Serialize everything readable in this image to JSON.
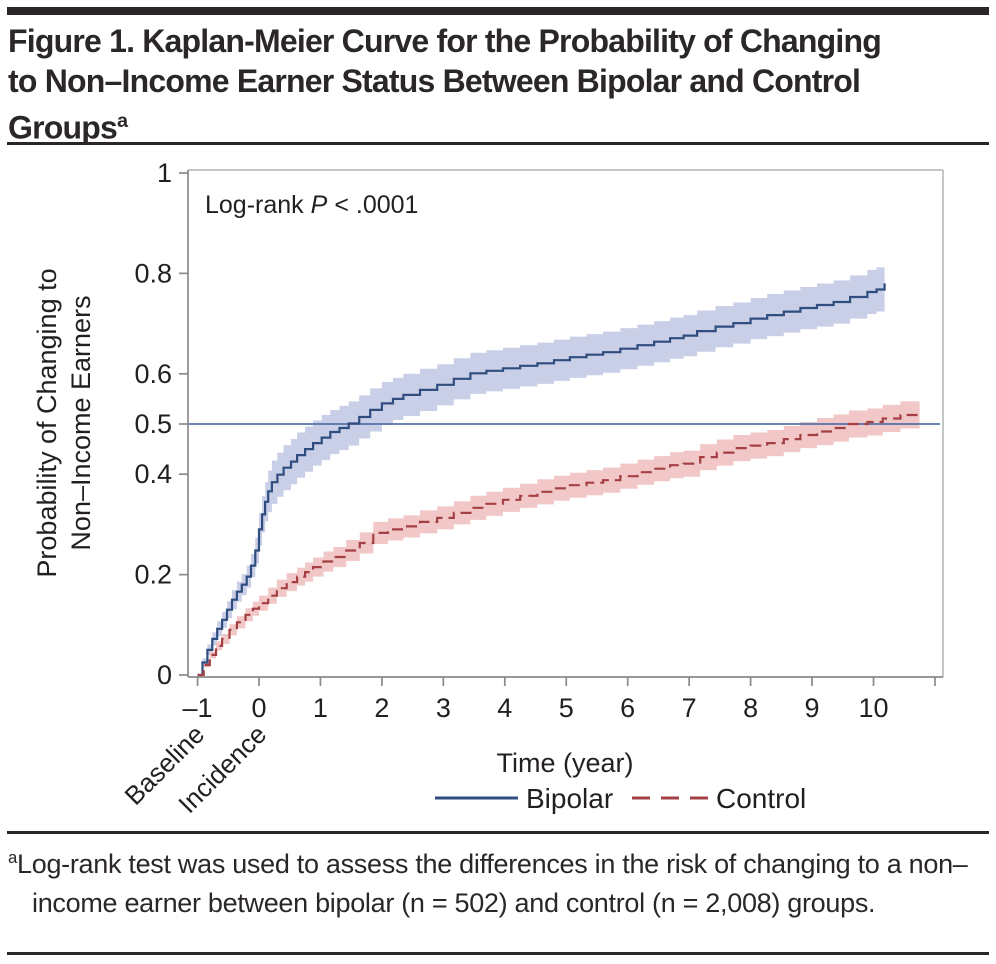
{
  "header": {
    "title_lines": [
      "Figure 1. Kaplan-Meier Curve for the Probability of Changing",
      "to Non–Income Earner Status Between Bipolar and Control",
      "Groups"
    ],
    "title_superscript": "a"
  },
  "footnote": {
    "superscript": "a",
    "text": "Log-rank test was used to assess the differences in the risk of changing to a non–income earner between bipolar (n = 502) and control (n = 2,008) groups."
  },
  "chart_data": {
    "type": "line",
    "subtype": "kaplan-meier-step-curves-with-confidence-bands",
    "annotation_prefix": "Log-rank",
    "annotation_p": "P",
    "annotation_suffix": "< .0001",
    "xlabel": "Time (year)",
    "ylabel_lines": [
      "Probability of Changing to",
      "Non–Income Earners"
    ],
    "xlim": [
      -1.16,
      11.15
    ],
    "ylim": [
      0,
      1
    ],
    "grid": false,
    "legend_position": "bottom",
    "reference_line_y": 0.5,
    "reference_line_color": "#5472a8",
    "x_ticks": [
      {
        "v": -1,
        "label": "–1"
      },
      {
        "v": 0,
        "label": "0"
      },
      {
        "v": 1,
        "label": "1"
      },
      {
        "v": 2,
        "label": "2"
      },
      {
        "v": 3,
        "label": "3"
      },
      {
        "v": 4,
        "label": "4"
      },
      {
        "v": 5,
        "label": "5"
      },
      {
        "v": 6,
        "label": "6"
      },
      {
        "v": 7,
        "label": "7"
      },
      {
        "v": 8,
        "label": "8"
      },
      {
        "v": 9,
        "label": "9"
      },
      {
        "v": 10,
        "label": "10"
      },
      {
        "v": 11,
        "label": ""
      }
    ],
    "y_ticks": [
      {
        "v": 0,
        "label": "0"
      },
      {
        "v": 0.2,
        "label": "0.2"
      },
      {
        "v": 0.4,
        "label": "0.4"
      },
      {
        "v": 0.5,
        "label": "0.5"
      },
      {
        "v": 0.6,
        "label": "0.6"
      },
      {
        "v": 0.8,
        "label": "0.8"
      },
      {
        "v": 1,
        "label": "1"
      }
    ],
    "x_tick_sublabels": [
      {
        "x": -1,
        "label": "Baseline"
      },
      {
        "x": 0,
        "label": "Incidence"
      }
    ],
    "series": [
      {
        "name": "Bipolar",
        "style": "solid",
        "color": "#2f4d7e",
        "band_color": "#c3cae4",
        "points_format": "[time_years, probability, ci_halfwidth]",
        "points": [
          [
            -1.0,
            0.0,
            0.0
          ],
          [
            -0.92,
            0.025,
            0.008
          ],
          [
            -0.84,
            0.05,
            0.011
          ],
          [
            -0.76,
            0.072,
            0.013
          ],
          [
            -0.68,
            0.092,
            0.015
          ],
          [
            -0.6,
            0.11,
            0.016
          ],
          [
            -0.52,
            0.13,
            0.017
          ],
          [
            -0.44,
            0.15,
            0.019
          ],
          [
            -0.36,
            0.166,
            0.02
          ],
          [
            -0.28,
            0.18,
            0.021
          ],
          [
            -0.2,
            0.196,
            0.022
          ],
          [
            -0.13,
            0.218,
            0.023
          ],
          [
            -0.06,
            0.248,
            0.026
          ],
          [
            0.0,
            0.29,
            0.032
          ],
          [
            0.05,
            0.32,
            0.036
          ],
          [
            0.1,
            0.345,
            0.039
          ],
          [
            0.15,
            0.366,
            0.041
          ],
          [
            0.21,
            0.384,
            0.043
          ],
          [
            0.3,
            0.399,
            0.044
          ],
          [
            0.4,
            0.413,
            0.045
          ],
          [
            0.52,
            0.425,
            0.045
          ],
          [
            0.62,
            0.438,
            0.045
          ],
          [
            0.75,
            0.45,
            0.045
          ],
          [
            0.88,
            0.462,
            0.045
          ],
          [
            1.02,
            0.473,
            0.045
          ],
          [
            1.16,
            0.484,
            0.044
          ],
          [
            1.31,
            0.492,
            0.044
          ],
          [
            1.46,
            0.501,
            0.044
          ],
          [
            1.63,
            0.514,
            0.043
          ],
          [
            1.81,
            0.528,
            0.043
          ],
          [
            2.0,
            0.541,
            0.043
          ],
          [
            2.18,
            0.55,
            0.042
          ],
          [
            2.35,
            0.558,
            0.042
          ],
          [
            2.62,
            0.568,
            0.042
          ],
          [
            2.9,
            0.578,
            0.041
          ],
          [
            3.17,
            0.59,
            0.041
          ],
          [
            3.44,
            0.601,
            0.041
          ],
          [
            3.7,
            0.606,
            0.041
          ],
          [
            3.97,
            0.611,
            0.041
          ],
          [
            4.25,
            0.616,
            0.041
          ],
          [
            4.53,
            0.621,
            0.041
          ],
          [
            4.8,
            0.627,
            0.041
          ],
          [
            5.06,
            0.633,
            0.041
          ],
          [
            5.33,
            0.638,
            0.041
          ],
          [
            5.6,
            0.643,
            0.041
          ],
          [
            5.88,
            0.65,
            0.041
          ],
          [
            6.16,
            0.657,
            0.041
          ],
          [
            6.43,
            0.664,
            0.041
          ],
          [
            6.69,
            0.671,
            0.041
          ],
          [
            6.91,
            0.676,
            0.041
          ],
          [
            7.13,
            0.685,
            0.041
          ],
          [
            7.43,
            0.694,
            0.041
          ],
          [
            7.72,
            0.701,
            0.041
          ],
          [
            8.0,
            0.71,
            0.041
          ],
          [
            8.27,
            0.717,
            0.042
          ],
          [
            8.54,
            0.724,
            0.042
          ],
          [
            8.81,
            0.731,
            0.042
          ],
          [
            9.08,
            0.737,
            0.043
          ],
          [
            9.35,
            0.743,
            0.043
          ],
          [
            9.62,
            0.753,
            0.043
          ],
          [
            9.9,
            0.763,
            0.044
          ],
          [
            10.05,
            0.768,
            0.044
          ],
          [
            10.18,
            0.78,
            0.044
          ]
        ]
      },
      {
        "name": "Control",
        "style": "dashed",
        "color": "#a43f44",
        "band_color": "#f0c2c1",
        "points_format": "[time_years, probability, ci_halfwidth]",
        "points": [
          [
            -1.0,
            0.0,
            0.0
          ],
          [
            -0.9,
            0.02,
            0.005
          ],
          [
            -0.8,
            0.04,
            0.007
          ],
          [
            -0.7,
            0.058,
            0.009
          ],
          [
            -0.6,
            0.072,
            0.01
          ],
          [
            -0.48,
            0.09,
            0.011
          ],
          [
            -0.36,
            0.105,
            0.012
          ],
          [
            -0.22,
            0.12,
            0.013
          ],
          [
            -0.1,
            0.132,
            0.014
          ],
          [
            0.0,
            0.143,
            0.015
          ],
          [
            0.15,
            0.158,
            0.016
          ],
          [
            0.29,
            0.173,
            0.017
          ],
          [
            0.45,
            0.185,
            0.018
          ],
          [
            0.62,
            0.196,
            0.018
          ],
          [
            0.75,
            0.205,
            0.019
          ],
          [
            0.88,
            0.215,
            0.019
          ],
          [
            1.05,
            0.226,
            0.02
          ],
          [
            1.21,
            0.235,
            0.02
          ],
          [
            1.42,
            0.248,
            0.021
          ],
          [
            1.64,
            0.263,
            0.021
          ],
          [
            1.86,
            0.283,
            0.022
          ],
          [
            2.1,
            0.29,
            0.022
          ],
          [
            2.35,
            0.296,
            0.022
          ],
          [
            2.62,
            0.305,
            0.023
          ],
          [
            2.9,
            0.313,
            0.023
          ],
          [
            3.17,
            0.323,
            0.023
          ],
          [
            3.44,
            0.333,
            0.024
          ],
          [
            3.7,
            0.341,
            0.024
          ],
          [
            3.97,
            0.349,
            0.024
          ],
          [
            4.25,
            0.357,
            0.024
          ],
          [
            4.53,
            0.365,
            0.025
          ],
          [
            4.8,
            0.372,
            0.025
          ],
          [
            5.06,
            0.378,
            0.025
          ],
          [
            5.33,
            0.383,
            0.025
          ],
          [
            5.6,
            0.388,
            0.025
          ],
          [
            5.88,
            0.396,
            0.025
          ],
          [
            6.16,
            0.404,
            0.025
          ],
          [
            6.43,
            0.411,
            0.025
          ],
          [
            6.69,
            0.418,
            0.026
          ],
          [
            6.91,
            0.421,
            0.026
          ],
          [
            7.18,
            0.434,
            0.026
          ],
          [
            7.45,
            0.443,
            0.026
          ],
          [
            7.72,
            0.452,
            0.026
          ],
          [
            8.0,
            0.457,
            0.026
          ],
          [
            8.27,
            0.462,
            0.026
          ],
          [
            8.54,
            0.47,
            0.026
          ],
          [
            8.81,
            0.478,
            0.026
          ],
          [
            9.08,
            0.485,
            0.027
          ],
          [
            9.35,
            0.492,
            0.027
          ],
          [
            9.6,
            0.5,
            0.027
          ],
          [
            9.9,
            0.504,
            0.027
          ],
          [
            10.15,
            0.511,
            0.027
          ],
          [
            10.44,
            0.518,
            0.027
          ],
          [
            10.75,
            0.526,
            0.027
          ]
        ]
      }
    ]
  }
}
